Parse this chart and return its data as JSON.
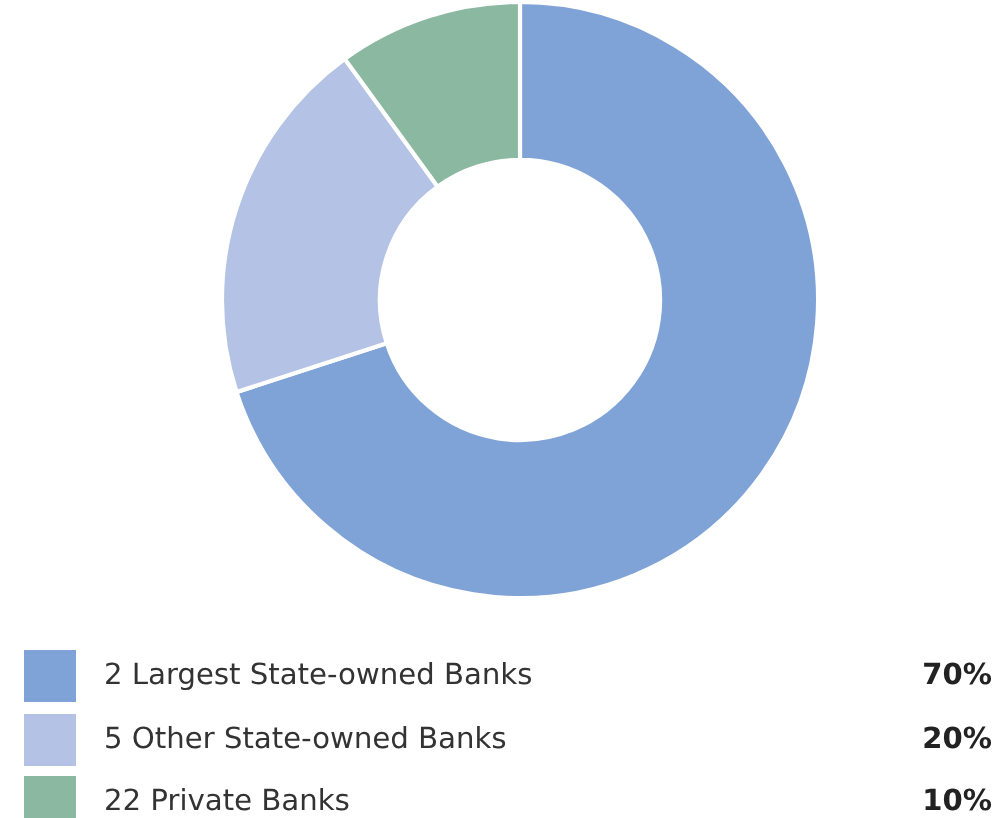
{
  "chart_data": {
    "type": "donut",
    "categories": [
      "2 Largest State-owned Banks",
      "5 Other State-owned Banks",
      "22 Private Banks"
    ],
    "values": [
      70,
      20,
      10
    ],
    "colors": [
      "#7fa3d6",
      "#b4c3e5",
      "#8ab8a0"
    ],
    "value_labels": [
      "70%",
      "20%",
      "10%"
    ],
    "legend": "bottom"
  }
}
